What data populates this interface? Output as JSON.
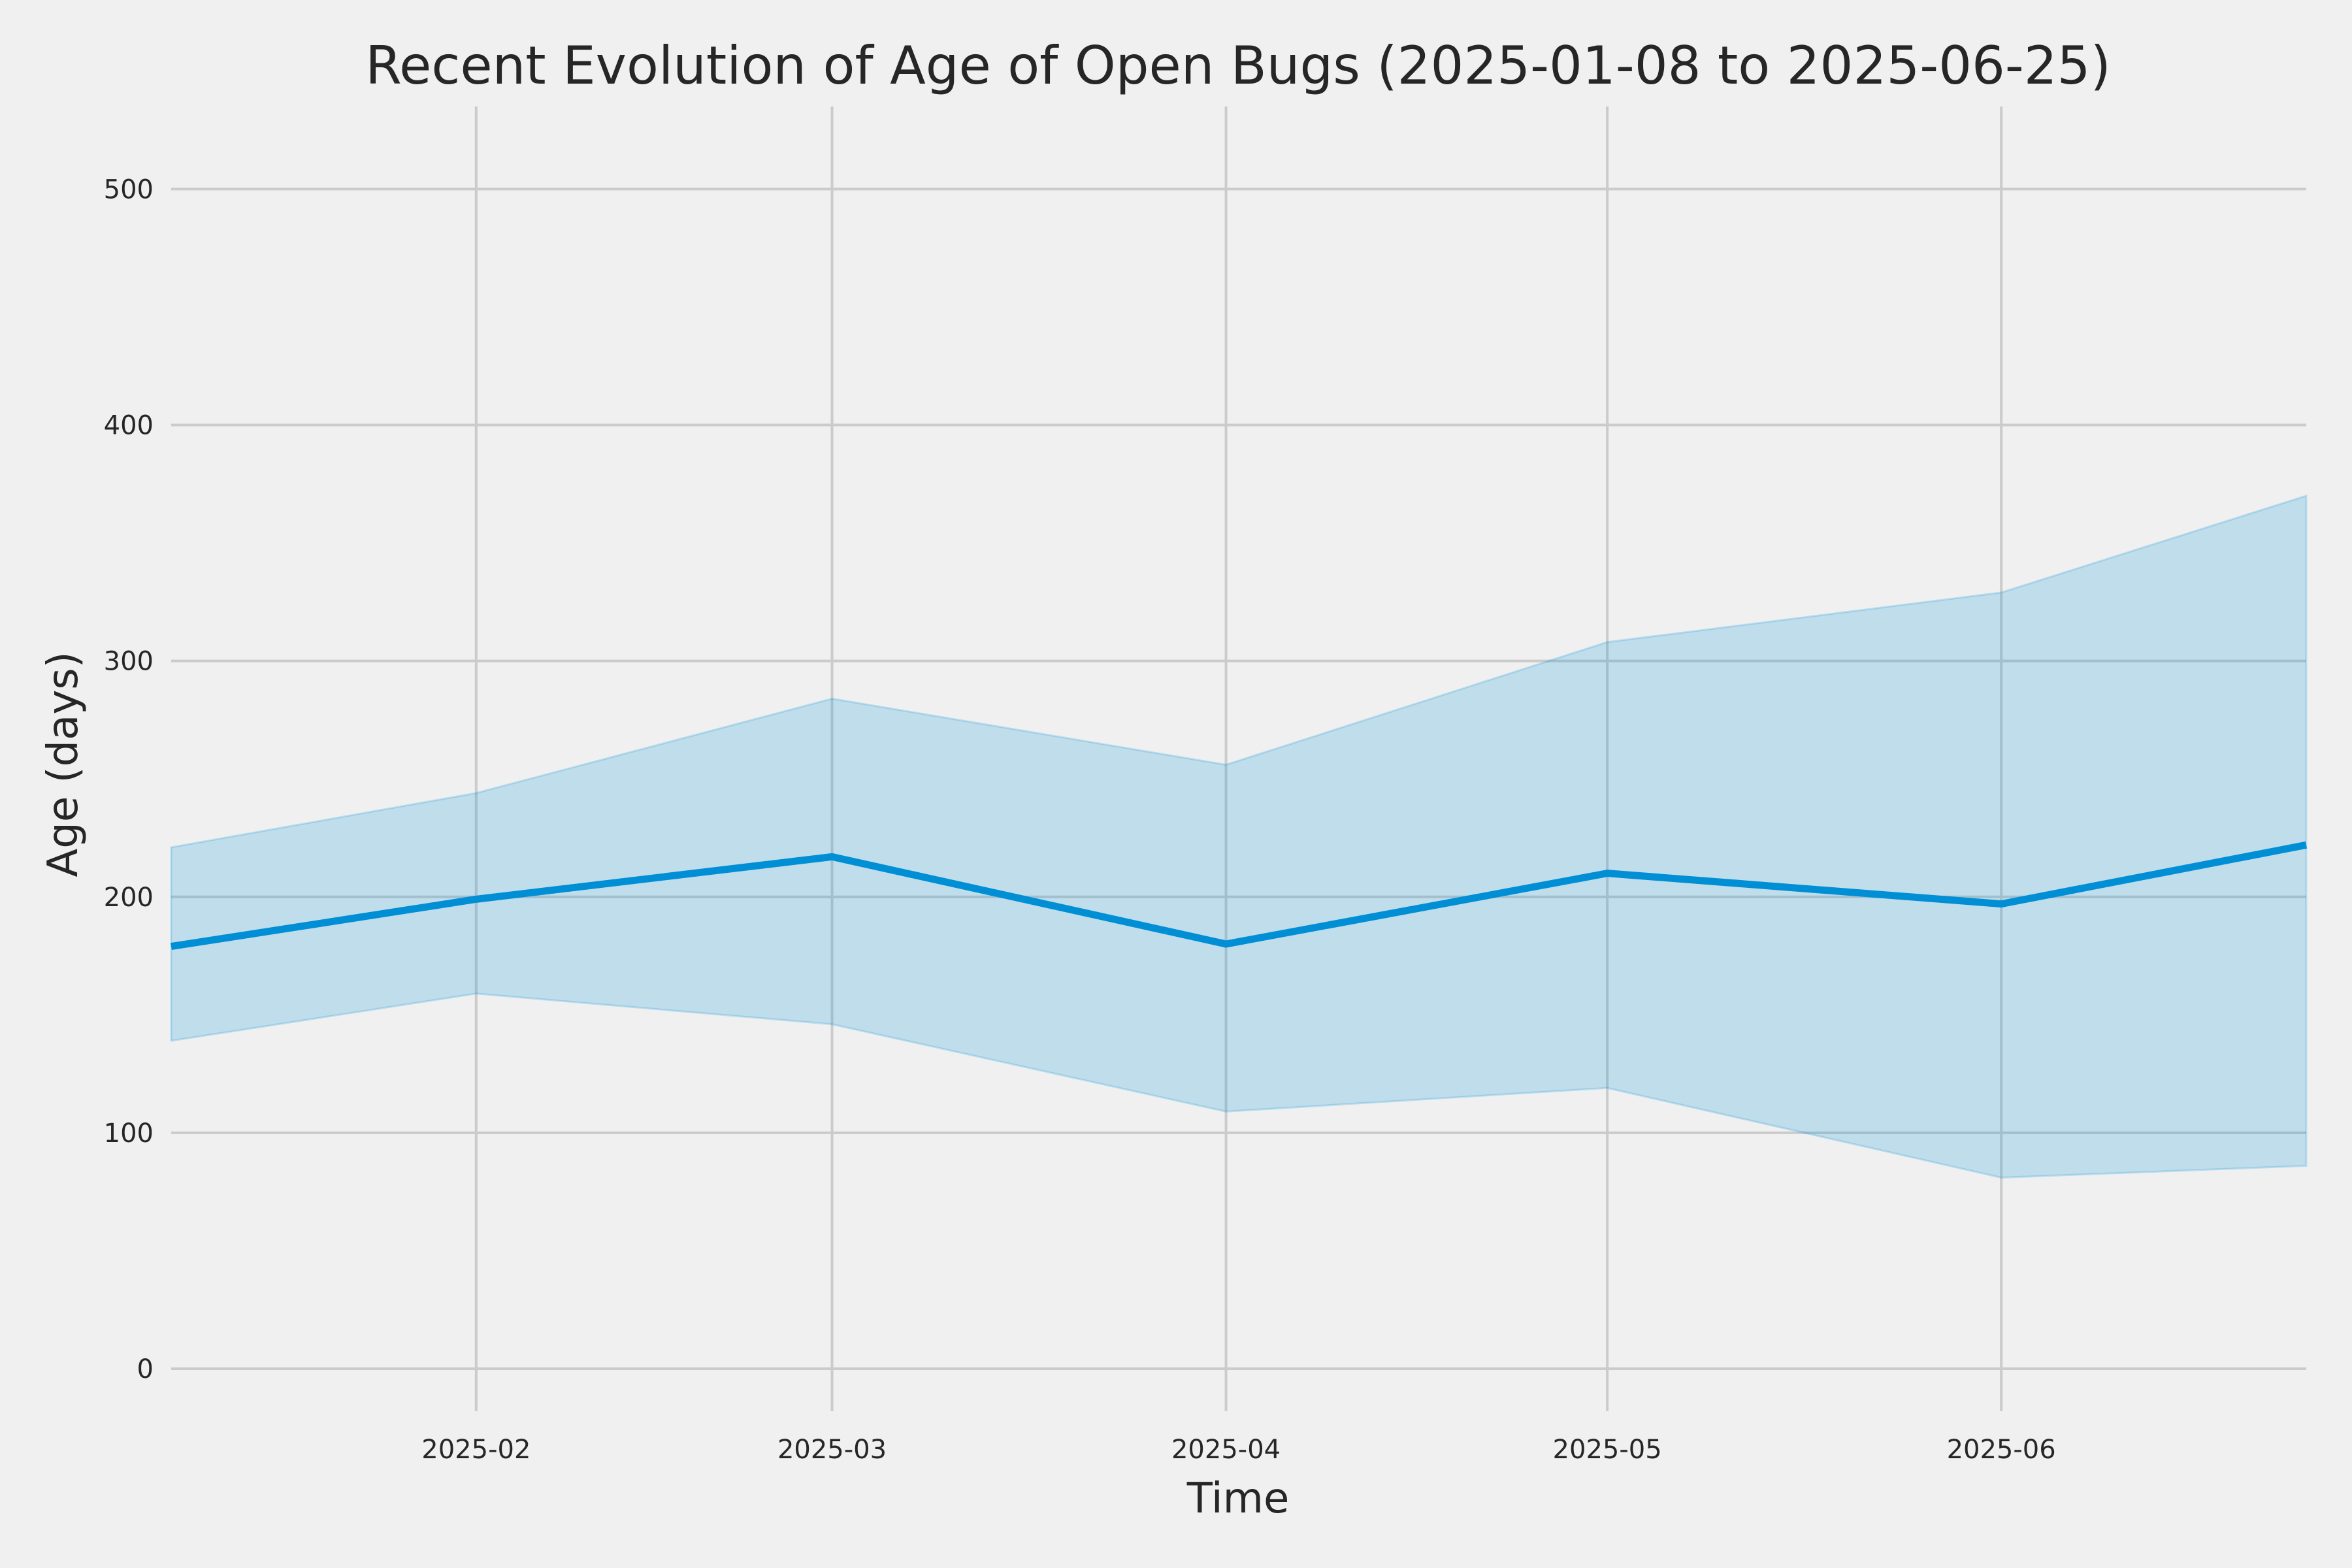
{
  "chart_data": {
    "type": "line",
    "title": "Recent Evolution of Age of Open Bugs (2025-01-08 to 2025-06-25)",
    "xlabel": "Time",
    "ylabel": "Age (days)",
    "x_range": [
      "2025-01-08",
      "2025-06-25"
    ],
    "ylim": [
      -18,
      535
    ],
    "yticks": [
      0,
      100,
      200,
      300,
      400,
      500
    ],
    "xticks": [
      {
        "date": "2025-02-01",
        "label": "2025-02"
      },
      {
        "date": "2025-03-01",
        "label": "2025-03"
      },
      {
        "date": "2025-04-01",
        "label": "2025-04"
      },
      {
        "date": "2025-05-01",
        "label": "2025-05"
      },
      {
        "date": "2025-06-01",
        "label": "2025-06"
      }
    ],
    "grid": true,
    "x": [
      "2025-01-08",
      "2025-02-01",
      "2025-03-01",
      "2025-04-01",
      "2025-05-01",
      "2025-06-01",
      "2025-06-25"
    ],
    "series": [
      {
        "values": [
          179,
          199,
          217,
          180,
          210,
          197,
          222
        ]
      }
    ],
    "band": {
      "upper": [
        221,
        244,
        284,
        256,
        308,
        329,
        370
      ],
      "lower": [
        139,
        159,
        146,
        109,
        119,
        81,
        86
      ]
    },
    "colors": {
      "line": "#008fd5",
      "band": "#008fd5",
      "background": "#f0f0f0",
      "grid": "#cbcbcb",
      "text": "#262626"
    }
  }
}
